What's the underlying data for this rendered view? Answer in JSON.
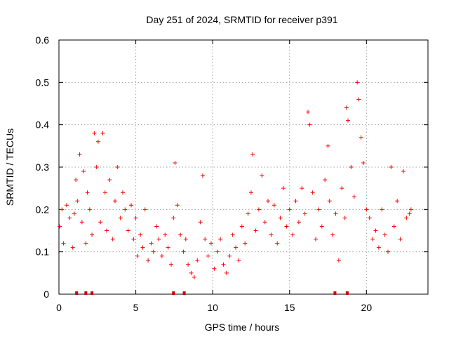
{
  "chart_data": {
    "type": "scatter",
    "title": "Day 251 of 2024, SRMTID for receiver p391",
    "xlabel": "GPS time / hours",
    "ylabel": "SRMTID / TECUs",
    "xlim": [
      0,
      24
    ],
    "ylim": [
      0,
      0.6
    ],
    "x_ticks": [
      "0",
      "5",
      "10",
      "15",
      "20"
    ],
    "y_ticks": [
      "0",
      "0.1",
      "0.2",
      "0.3",
      "0.4",
      "0.5",
      "0.6"
    ],
    "grid": true,
    "series": [
      {
        "name": "SRMTID",
        "marker": "plus",
        "color": "#ff0000",
        "points": [
          [
            0.05,
            0.16
          ],
          [
            0.2,
            0.2
          ],
          [
            0.3,
            0.12
          ],
          [
            0.5,
            0.21
          ],
          [
            0.7,
            0.18
          ],
          [
            0.9,
            0.11
          ],
          [
            1.0,
            0.19
          ],
          [
            1.1,
            0.27
          ],
          [
            1.2,
            0.22
          ],
          [
            1.35,
            0.33
          ],
          [
            1.5,
            0.17
          ],
          [
            1.6,
            0.29
          ],
          [
            1.75,
            0.12
          ],
          [
            1.85,
            0.24
          ],
          [
            2.0,
            0.2
          ],
          [
            2.15,
            0.14
          ],
          [
            2.3,
            0.38
          ],
          [
            2.45,
            0.3
          ],
          [
            2.55,
            0.36
          ],
          [
            2.7,
            0.17
          ],
          [
            2.85,
            0.38
          ],
          [
            3.0,
            0.24
          ],
          [
            3.1,
            0.15
          ],
          [
            3.3,
            0.27
          ],
          [
            3.5,
            0.13
          ],
          [
            3.65,
            0.22
          ],
          [
            3.8,
            0.3
          ],
          [
            4.0,
            0.18
          ],
          [
            4.15,
            0.24
          ],
          [
            4.3,
            0.2
          ],
          [
            4.5,
            0.15
          ],
          [
            4.7,
            0.21
          ],
          [
            4.85,
            0.13
          ],
          [
            5.0,
            0.18
          ],
          [
            5.1,
            0.09
          ],
          [
            5.3,
            0.14
          ],
          [
            5.45,
            0.11
          ],
          [
            5.6,
            0.2
          ],
          [
            5.8,
            0.08
          ],
          [
            6.0,
            0.12
          ],
          [
            6.15,
            0.1
          ],
          [
            6.35,
            0.16
          ],
          [
            6.5,
            0.13
          ],
          [
            6.7,
            0.09
          ],
          [
            6.9,
            0.14
          ],
          [
            7.1,
            0.11
          ],
          [
            7.3,
            0.07
          ],
          [
            7.45,
            0.18
          ],
          [
            7.55,
            0.31
          ],
          [
            7.7,
            0.21
          ],
          [
            7.9,
            0.14
          ],
          [
            8.1,
            0.1
          ],
          [
            8.25,
            0.13
          ],
          [
            8.4,
            0.07
          ],
          [
            8.6,
            0.05
          ],
          [
            8.8,
            0.04
          ],
          [
            9.0,
            0.08
          ],
          [
            9.2,
            0.17
          ],
          [
            9.35,
            0.28
          ],
          [
            9.5,
            0.13
          ],
          [
            9.7,
            0.09
          ],
          [
            9.9,
            0.12
          ],
          [
            10.1,
            0.06
          ],
          [
            10.3,
            0.1
          ],
          [
            10.5,
            0.13
          ],
          [
            10.7,
            0.07
          ],
          [
            10.9,
            0.05
          ],
          [
            11.1,
            0.09
          ],
          [
            11.3,
            0.14
          ],
          [
            11.5,
            0.11
          ],
          [
            11.7,
            0.08
          ],
          [
            11.9,
            0.16
          ],
          [
            12.1,
            0.12
          ],
          [
            12.3,
            0.19
          ],
          [
            12.5,
            0.24
          ],
          [
            12.6,
            0.33
          ],
          [
            12.8,
            0.15
          ],
          [
            13.0,
            0.2
          ],
          [
            13.2,
            0.28
          ],
          [
            13.4,
            0.17
          ],
          [
            13.6,
            0.22
          ],
          [
            13.8,
            0.14
          ],
          [
            14.0,
            0.21
          ],
          [
            14.2,
            0.12
          ],
          [
            14.4,
            0.18
          ],
          [
            14.6,
            0.25
          ],
          [
            14.8,
            0.16
          ],
          [
            15.0,
            0.2
          ],
          [
            15.2,
            0.14
          ],
          [
            15.4,
            0.22
          ],
          [
            15.6,
            0.17
          ],
          [
            15.8,
            0.25
          ],
          [
            16.0,
            0.19
          ],
          [
            16.2,
            0.43
          ],
          [
            16.3,
            0.4
          ],
          [
            16.5,
            0.24
          ],
          [
            16.7,
            0.13
          ],
          [
            16.9,
            0.2
          ],
          [
            17.1,
            0.16
          ],
          [
            17.3,
            0.27
          ],
          [
            17.5,
            0.35
          ],
          [
            17.6,
            0.22
          ],
          [
            17.8,
            0.14
          ],
          [
            18.0,
            0.19
          ],
          [
            18.2,
            0.08
          ],
          [
            18.4,
            0.25
          ],
          [
            18.6,
            0.18
          ],
          [
            18.7,
            0.44
          ],
          [
            18.8,
            0.41
          ],
          [
            19.0,
            0.3
          ],
          [
            19.2,
            0.23
          ],
          [
            19.4,
            0.5
          ],
          [
            19.5,
            0.46
          ],
          [
            19.65,
            0.37
          ],
          [
            19.8,
            0.31
          ],
          [
            20.0,
            0.2
          ],
          [
            20.2,
            0.18
          ],
          [
            20.4,
            0.13
          ],
          [
            20.6,
            0.15
          ],
          [
            20.8,
            0.11
          ],
          [
            21.0,
            0.2
          ],
          [
            21.2,
            0.14
          ],
          [
            21.4,
            0.1
          ],
          [
            21.6,
            0.3
          ],
          [
            21.8,
            0.16
          ],
          [
            22.0,
            0.22
          ],
          [
            22.2,
            0.13
          ],
          [
            22.4,
            0.29
          ],
          [
            22.6,
            0.18
          ],
          [
            22.8,
            0.19
          ],
          [
            22.9,
            0.2
          ]
        ]
      },
      {
        "name": "zero markers",
        "marker": "tick",
        "color": "#cc0000",
        "points": [
          [
            1.15,
            0
          ],
          [
            1.75,
            0
          ],
          [
            2.15,
            0
          ],
          [
            7.45,
            0
          ],
          [
            8.15,
            0
          ],
          [
            17.95,
            0
          ],
          [
            18.75,
            0
          ]
        ]
      }
    ]
  }
}
